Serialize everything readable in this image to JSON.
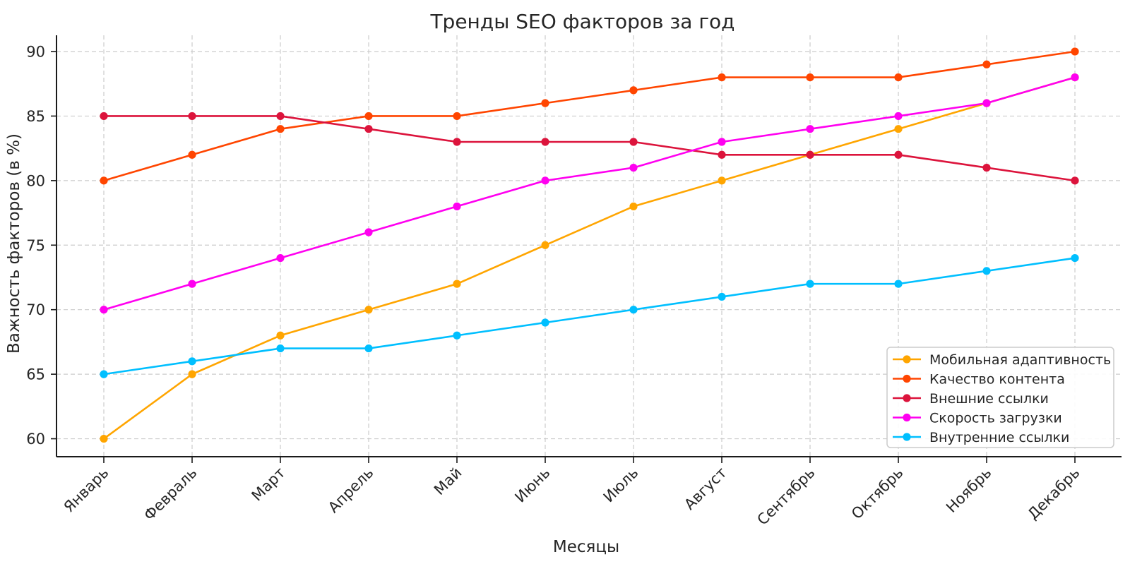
{
  "chart_data": {
    "type": "line",
    "title": "Тренды SEO факторов за год",
    "xlabel": "Месяцы",
    "ylabel": "Важность факторов (в %)",
    "categories": [
      "Январь",
      "Февраль",
      "Март",
      "Апрель",
      "Май",
      "Июнь",
      "Июль",
      "Август",
      "Сентябрь",
      "Октябрь",
      "Ноябрь",
      "Декабрь"
    ],
    "yticks": [
      60,
      65,
      70,
      75,
      80,
      85,
      90
    ],
    "ylim": [
      58.5,
      91.5
    ],
    "grid": true,
    "grid_style": "dashed",
    "legend_position": "lower right",
    "series": [
      {
        "name": "Мобильная адаптивность",
        "color": "#FFA500",
        "values": [
          60,
          65,
          68,
          70,
          72,
          75,
          78,
          80,
          82,
          84,
          86,
          88
        ]
      },
      {
        "name": "Качество контента",
        "color": "#FF4500",
        "values": [
          80,
          82,
          84,
          85,
          85,
          86,
          87,
          88,
          88,
          88,
          89,
          90
        ]
      },
      {
        "name": "Внешние ссылки",
        "color": "#DC143C",
        "values": [
          85,
          85,
          85,
          84,
          83,
          83,
          83,
          82,
          82,
          82,
          81,
          80
        ]
      },
      {
        "name": "Скорость загрузки",
        "color": "#FF00F0",
        "values": [
          70,
          72,
          74,
          76,
          78,
          80,
          81,
          83,
          84,
          85,
          86,
          88
        ]
      },
      {
        "name": "Внутренние ссылки",
        "color": "#00BFFF",
        "values": [
          65,
          66,
          67,
          67,
          68,
          69,
          70,
          71,
          72,
          72,
          73,
          74
        ]
      }
    ],
    "colors": {
      "background": "#ffffff",
      "text": "#262626",
      "grid": "#cccccc",
      "spine": "#1a1a1a",
      "legend_border": "#cccccc",
      "legend_background": "#ffffff"
    }
  }
}
